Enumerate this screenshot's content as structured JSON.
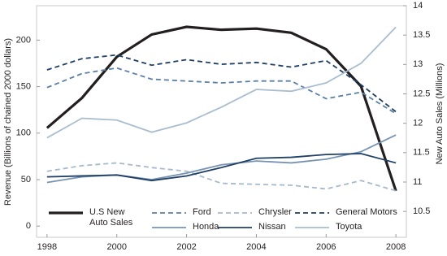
{
  "chart_data": {
    "type": "line",
    "y_label": "Revenue (Billions of chained 2000 dollars)",
    "y2_label": "New Auto Sales (Millions)",
    "x": [
      1998,
      1999,
      2000,
      2001,
      2002,
      2003,
      2004,
      2005,
      2006,
      2007,
      2008
    ],
    "xlim": [
      1997.7,
      2008.3
    ],
    "xticks": [
      1998,
      2000,
      2002,
      2004,
      2006,
      2008
    ],
    "ylim": [
      -12,
      237
    ],
    "yticks": [
      0,
      50,
      100,
      150,
      200
    ],
    "y2lim": [
      10.06,
      14
    ],
    "y2ticks": [
      10.5,
      11,
      11.5,
      12,
      12.5,
      13,
      13.5,
      14
    ],
    "series": [
      {
        "name": "U.S New Auto Sales",
        "color": "#231f20",
        "axis": "y2",
        "width": 3.2,
        "dash": false,
        "values": [
          11.92,
          12.43,
          13.13,
          13.51,
          13.64,
          13.59,
          13.61,
          13.54,
          13.26,
          12.63,
          10.85
        ]
      },
      {
        "name": "Ford",
        "color": "#5b7fa6",
        "width": 1.8,
        "dash": true,
        "values": [
          149,
          164,
          170,
          158,
          156,
          154,
          156,
          156,
          137,
          144,
          121
        ]
      },
      {
        "name": "Chrysler",
        "color": "#a7b9cc",
        "width": 1.8,
        "dash": true,
        "values": [
          59,
          65,
          68,
          63,
          59,
          46,
          45,
          44,
          40,
          49,
          38
        ]
      },
      {
        "name": "General Motors",
        "color": "#1d3f66",
        "width": 1.8,
        "dash": true,
        "values": [
          168,
          180,
          184,
          173,
          179,
          174,
          176,
          171,
          178,
          152,
          123
        ]
      },
      {
        "name": "Honda",
        "color": "#7693b3",
        "width": 1.8,
        "dash": false,
        "values": [
          47,
          53,
          55,
          50,
          57,
          66,
          70,
          68,
          72,
          80,
          98
        ]
      },
      {
        "name": "Nissan",
        "color": "#1f3f66",
        "width": 1.8,
        "dash": false,
        "values": [
          53,
          54,
          55,
          49,
          54,
          63,
          73,
          74,
          77,
          78,
          68
        ]
      },
      {
        "name": "Toyota",
        "color": "#a9bdd0",
        "width": 1.8,
        "dash": false,
        "values": [
          95,
          116,
          114,
          101,
          111,
          128,
          147,
          145,
          154,
          175,
          214
        ]
      }
    ]
  }
}
